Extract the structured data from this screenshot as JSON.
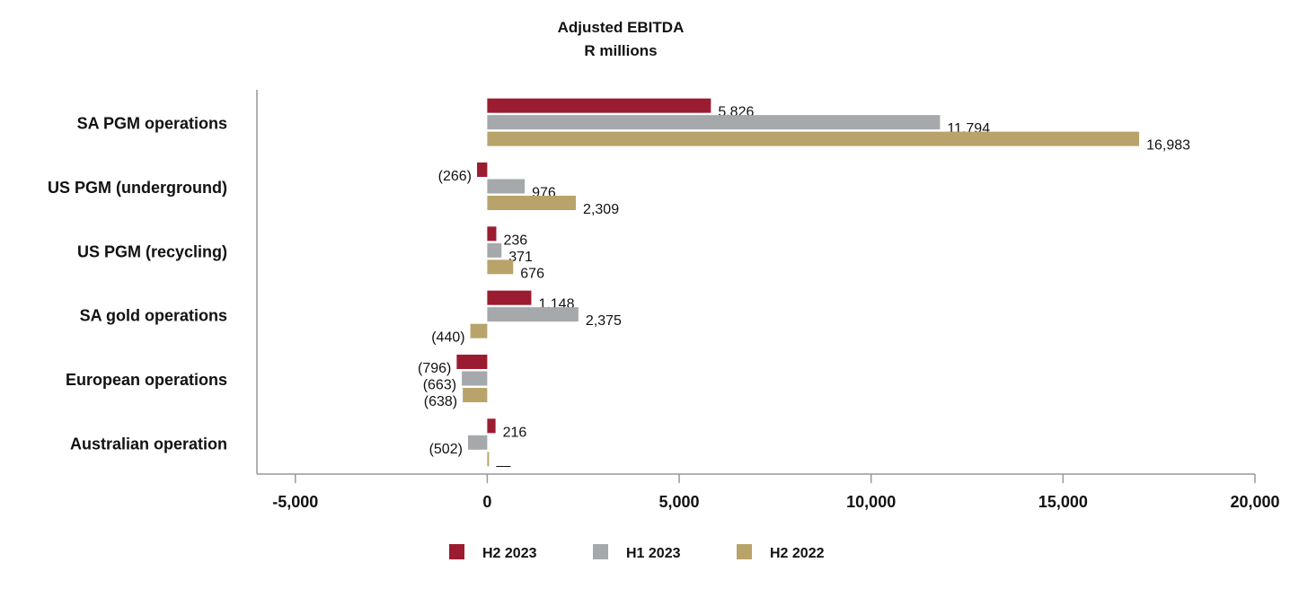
{
  "chart_data": {
    "type": "bar",
    "orientation": "horizontal",
    "title": "Adjusted EBITDA",
    "subtitle": "R millions",
    "categories": [
      "SA PGM operations",
      "US PGM (underground)",
      "US PGM (recycling)",
      "SA gold operations",
      "European operations",
      "Australian operation"
    ],
    "series": [
      {
        "name": "H2 2023",
        "color": "#9b1c31",
        "values": [
          5826,
          -266,
          236,
          1148,
          -796,
          216
        ],
        "labels": [
          "5,826",
          "(266)",
          "236",
          "1,148",
          "(796)",
          "216"
        ]
      },
      {
        "name": "H1 2023",
        "color": "#a5a9ab",
        "values": [
          11794,
          976,
          371,
          2375,
          -663,
          -502
        ],
        "labels": [
          "11,794",
          "976",
          "371",
          "2,375",
          "(663)",
          "(502)"
        ]
      },
      {
        "name": "H2 2022",
        "color": "#b8a46a",
        "values": [
          16983,
          2309,
          676,
          -440,
          -638,
          0
        ],
        "labels": [
          "16,983",
          "2,309",
          "676",
          "(440)",
          "(638)",
          "—"
        ]
      }
    ],
    "xlim": [
      -6000,
      20000
    ],
    "xticks": [
      -5000,
      0,
      5000,
      10000,
      15000,
      20000
    ],
    "xtick_labels": [
      "-5,000",
      "0",
      "5,000",
      "10,000",
      "15,000",
      "20,000"
    ],
    "grid": false,
    "legend": "bottom"
  }
}
